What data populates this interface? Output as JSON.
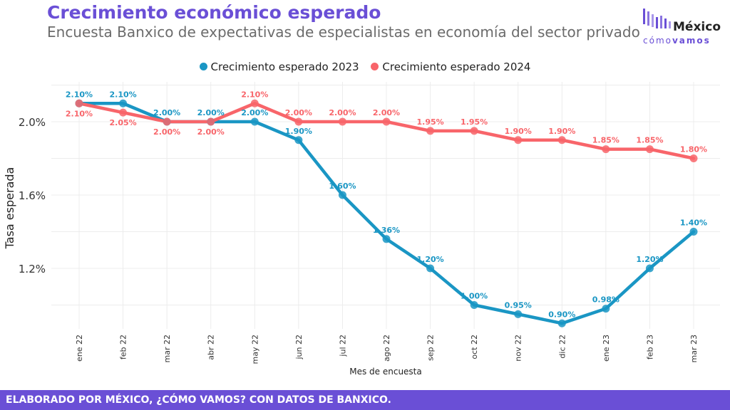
{
  "header": {
    "title": "Crecimiento económico esperado",
    "subtitle": "Encuesta Banxico de expectativas de especialistas en economía del sector privado"
  },
  "logo": {
    "main": "México",
    "sub_light": "cómo",
    "sub_bold": "vamos"
  },
  "footer": {
    "text": "ELABORADO POR MÉXICO, ¿CÓMO VAMOS? CON DATOS DE BANXICO."
  },
  "colors": {
    "accent": "#6a4fd6",
    "series_2023": "#1a96c4",
    "series_2024": "#f8656a"
  },
  "chart_data": {
    "type": "line",
    "xlabel": "Mes de encuesta",
    "ylabel": "Tasa esperada",
    "categories": [
      "ene 22",
      "feb 22",
      "mar 22",
      "abr 22",
      "may 22",
      "jun 22",
      "jul 22",
      "ago 22",
      "sep 22",
      "oct 22",
      "nov 22",
      "dic 22",
      "ene 23",
      "feb 23",
      "mar 23"
    ],
    "ylim": [
      0.9,
      2.15
    ],
    "yticks": [
      "1.2%",
      "1.6%",
      "2.0%"
    ],
    "ytick_values": [
      1.2,
      1.6,
      2.0
    ],
    "grid": true,
    "legend_position": "top",
    "series": [
      {
        "name": "Crecimiento esperado 2023",
        "color": "#1a96c4",
        "values": [
          2.1,
          2.1,
          2.0,
          2.0,
          2.0,
          1.9,
          1.6,
          1.36,
          1.2,
          1.0,
          0.95,
          0.9,
          0.98,
          1.2,
          1.4
        ],
        "labels": [
          "2.10%",
          "2.10%",
          "2.00%",
          "2.00%",
          "2.00%",
          "1.90%",
          "1.60%",
          "1.36%",
          "1.20%",
          "1.00%",
          "0.95%",
          "0.90%",
          "0.98%",
          "1.20%",
          "1.40%"
        ]
      },
      {
        "name": "Crecimiento esperado 2024",
        "color": "#f8656a",
        "values": [
          2.1,
          2.05,
          2.0,
          2.0,
          2.1,
          2.0,
          2.0,
          2.0,
          1.95,
          1.95,
          1.9,
          1.9,
          1.85,
          1.85,
          1.8
        ],
        "labels": [
          "2.10%",
          "2.05%",
          "2.00%",
          "2.00%",
          "2.10%",
          "2.00%",
          "2.00%",
          "2.00%",
          "1.95%",
          "1.95%",
          "1.90%",
          "1.90%",
          "1.85%",
          "1.85%",
          "1.80%"
        ]
      }
    ]
  }
}
